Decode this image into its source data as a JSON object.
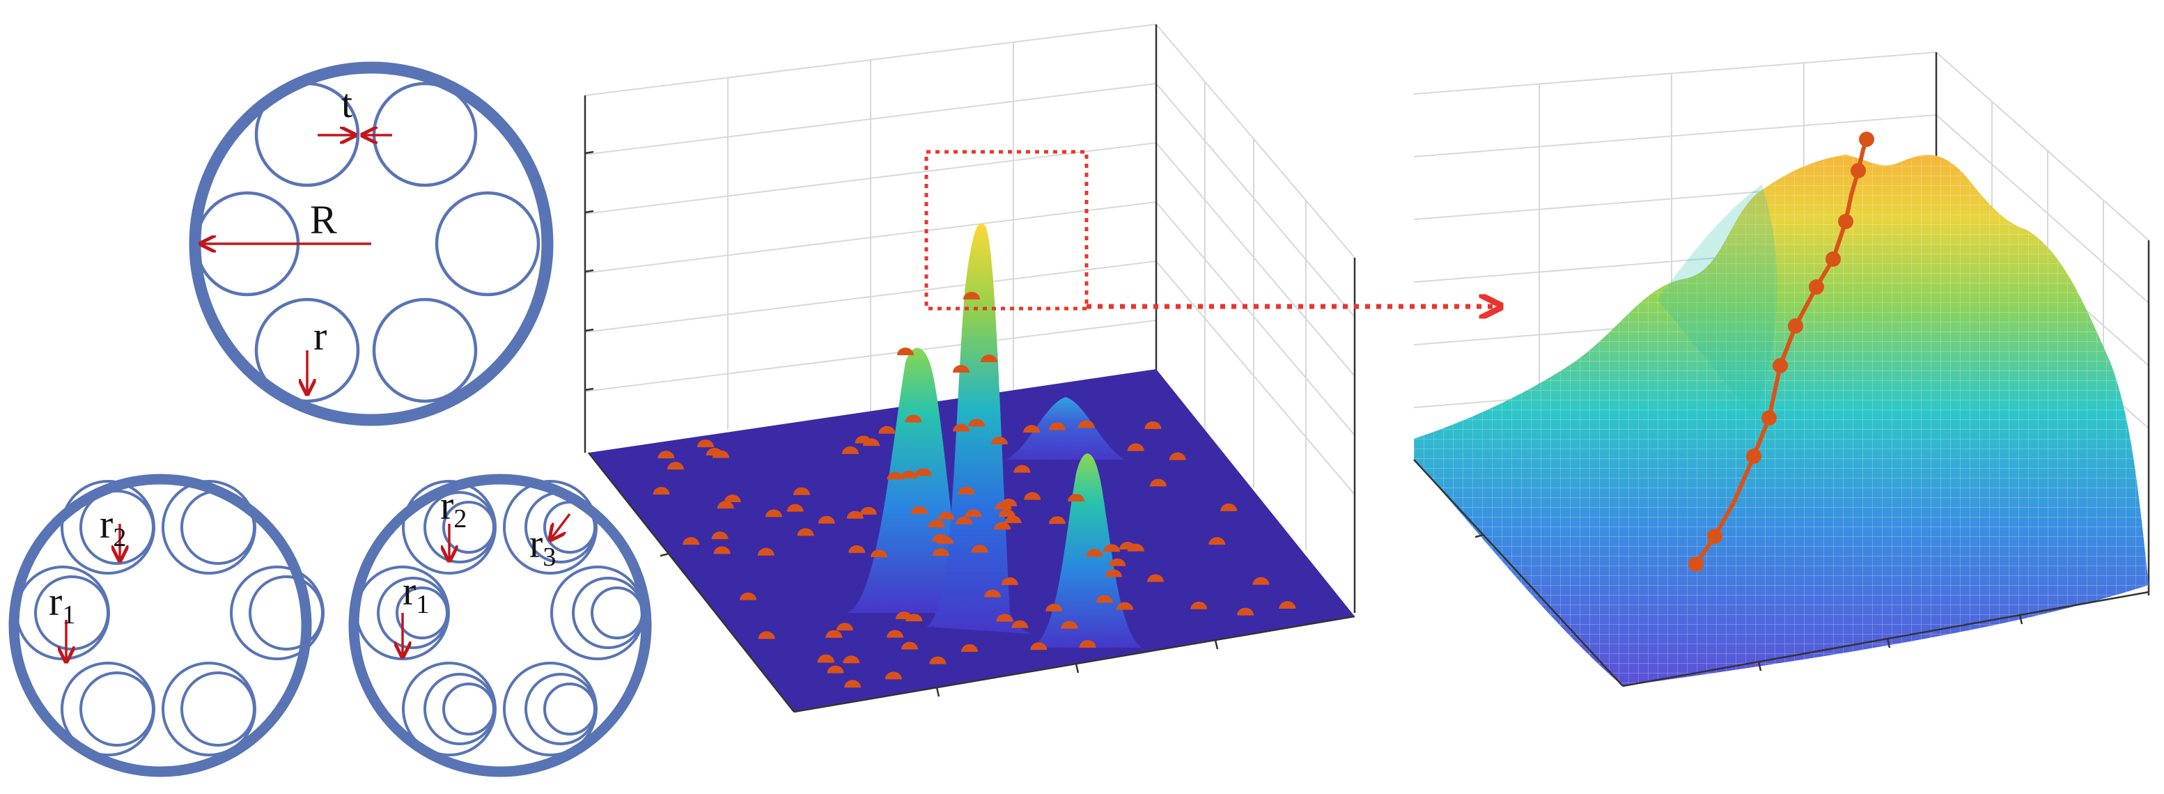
{
  "colors": {
    "ring": "#5874b5",
    "arrow": "#c0161c",
    "plane": "#3b2aa6",
    "marker": "#d95319",
    "zoom_box": "#e8352e"
  },
  "labels": {
    "thickness": "t",
    "outer_radius": "R",
    "inner_radius": "r",
    "r1_main": "r",
    "r1_sub": "1",
    "r2_main": "r",
    "r2_sub": "2",
    "r3_main": "r",
    "r3_sub": "3"
  },
  "panels": {
    "single_layer": "single-core cross section",
    "double_layer": "two-layer cross section",
    "triple_layer": "three-layer cross section",
    "landscape": "objective landscape with sampled points",
    "zoom": "zoomed peak with convergence path"
  }
}
